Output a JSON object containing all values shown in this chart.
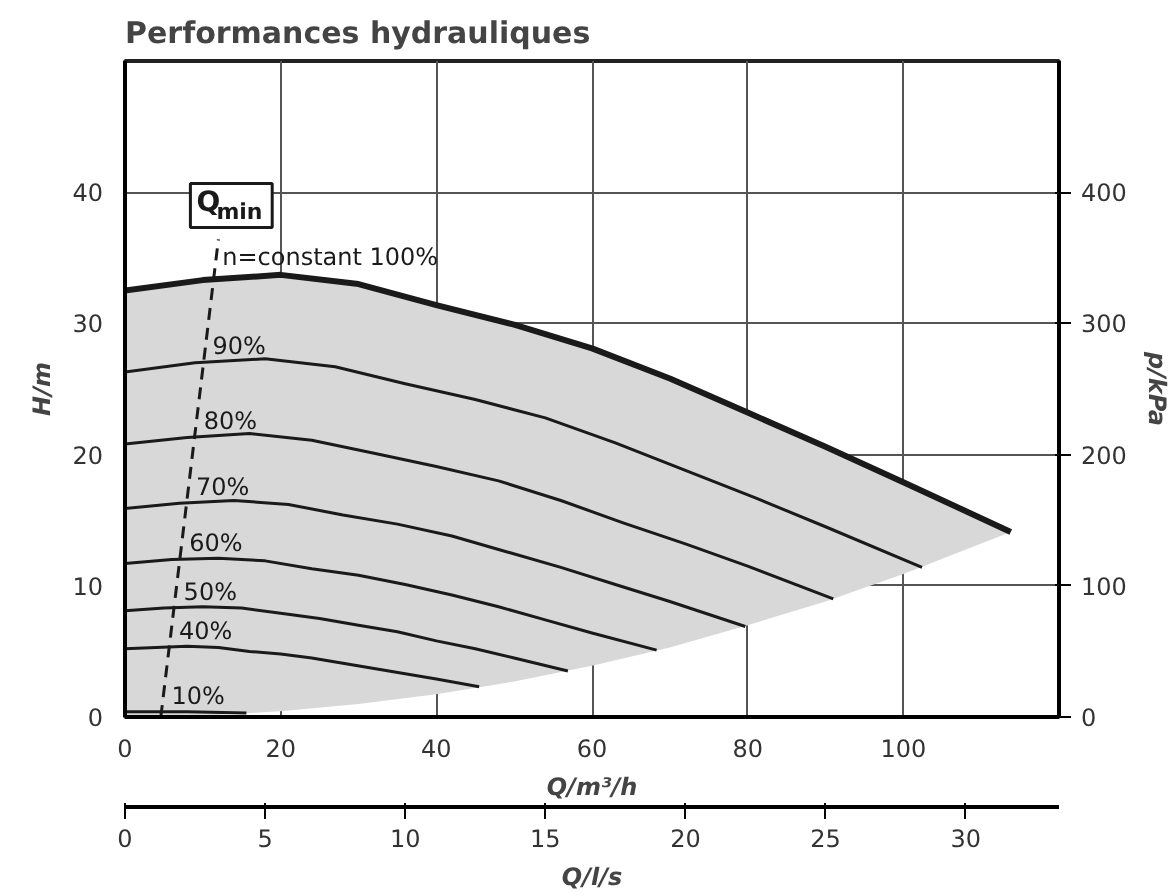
{
  "chart_data": {
    "type": "line",
    "title": "Performances hydrauliques",
    "xlabel": "Q/m³/h",
    "ylabel": "H/m",
    "y2label": "p/kPa",
    "x2label": "Q/l/s",
    "xlim": [
      0,
      120
    ],
    "xticks": [
      0,
      20,
      40,
      60,
      80,
      100
    ],
    "ylim": [
      0,
      50
    ],
    "yticks": [
      0,
      10,
      20,
      30,
      40
    ],
    "y2lim": [
      0,
      500
    ],
    "y2ticks": [
      0,
      100,
      200,
      300,
      400
    ],
    "x2lim": [
      0,
      33.33
    ],
    "x2ticks": [
      0,
      5,
      10,
      15,
      20,
      25,
      30
    ],
    "grid": true,
    "line_style": "solid",
    "marker": "none",
    "series": [
      {
        "name": "n=constant 100%",
        "color": "#1a1a1a",
        "x": [
          0,
          10,
          20,
          30,
          40,
          50,
          60,
          70,
          80,
          90,
          100,
          113.8
        ],
        "values": [
          32.5,
          33.3,
          33.7,
          33.0,
          31.4,
          29.9,
          28.1,
          25.8,
          23.2,
          20.6,
          17.9,
          14.1
        ],
        "lower": [
          0,
          0.1,
          0.44,
          1.0,
          1.74,
          2.7,
          3.9,
          5.3,
          7.0,
          8.8,
          10.9,
          14.1
        ],
        "upper": [
          32.5,
          33.3,
          33.7,
          33.0,
          31.4,
          29.9,
          28.1,
          25.8,
          23.2,
          20.6,
          17.9,
          14.1
        ]
      },
      {
        "name": "90%",
        "color": "#1a1a1a",
        "x": [
          0,
          9,
          18,
          27,
          36,
          45,
          54,
          63,
          72,
          81,
          90,
          102.4
        ],
        "values": [
          26.3,
          27.0,
          27.3,
          26.7,
          25.4,
          24.2,
          22.8,
          20.9,
          18.8,
          16.7,
          14.5,
          11.4
        ]
      },
      {
        "name": "80%",
        "color": "#1a1a1a",
        "x": [
          0,
          8,
          16,
          24,
          32,
          40,
          48,
          56,
          64,
          72,
          80,
          91
        ],
        "values": [
          20.8,
          21.3,
          21.6,
          21.1,
          20.1,
          19.1,
          18.0,
          16.5,
          14.8,
          13.2,
          11.5,
          9.0
        ]
      },
      {
        "name": "70%",
        "color": "#1a1a1a",
        "x": [
          0,
          7,
          14,
          21,
          28,
          35,
          42,
          49,
          56,
          63,
          70,
          79.7
        ],
        "values": [
          15.9,
          16.3,
          16.5,
          16.2,
          15.4,
          14.7,
          13.8,
          12.6,
          11.4,
          10.1,
          8.8,
          6.9
        ]
      },
      {
        "name": "60%",
        "color": "#1a1a1a",
        "x": [
          0,
          6,
          12,
          18,
          24,
          30,
          36,
          42,
          48,
          54,
          60,
          68.3
        ],
        "values": [
          11.7,
          12.0,
          12.1,
          11.9,
          11.3,
          10.8,
          10.1,
          9.3,
          8.4,
          7.4,
          6.4,
          5.1
        ]
      },
      {
        "name": "50%",
        "color": "#1a1a1a",
        "x": [
          0,
          5,
          10,
          15,
          20,
          25,
          30,
          35,
          40,
          45,
          50,
          56.9
        ],
        "values": [
          8.1,
          8.3,
          8.4,
          8.3,
          7.9,
          7.5,
          7.0,
          6.5,
          5.8,
          5.2,
          4.5,
          3.5
        ]
      },
      {
        "name": "40%",
        "color": "#1a1a1a",
        "x": [
          0,
          4,
          8,
          12,
          16,
          20,
          24,
          28,
          32,
          36,
          40,
          45.5
        ],
        "values": [
          5.2,
          5.3,
          5.4,
          5.3,
          5.0,
          4.8,
          4.5,
          4.1,
          3.7,
          3.3,
          2.9,
          2.3
        ]
      },
      {
        "name": "10%",
        "color": "#1a1a1a",
        "x": [
          0,
          8,
          15.6
        ],
        "values": [
          0.4,
          0.4,
          0.3
        ]
      },
      {
        "name": "Q$_{min}$",
        "color": "#1a1a1a",
        "x": [
          4.6,
          12
        ],
        "values": [
          0,
          36.4
        ],
        "line_style": "dashed"
      }
    ]
  }
}
